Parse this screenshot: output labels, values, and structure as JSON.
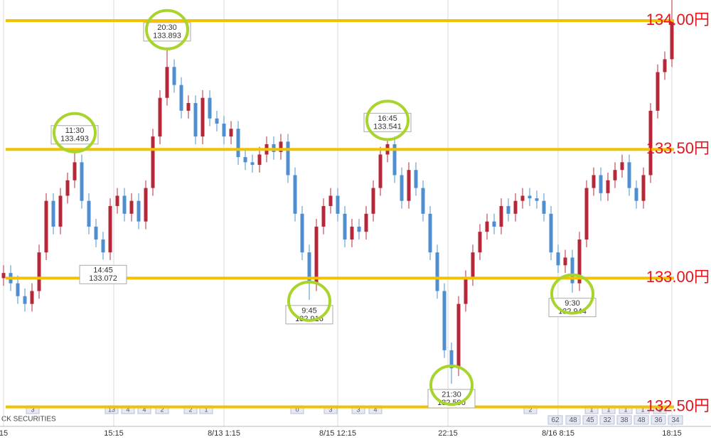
{
  "chart_data": {
    "type": "candlestick",
    "watermark": "CK SECURITIES",
    "up_color": "#b5283a",
    "down_color": "#4f8fd0",
    "level_color": "#f2c200",
    "level_label_color": "#e8141c",
    "circle_color": "#a8d42c",
    "grid": true,
    "xlim": [
      0,
      94
    ],
    "ylim": [
      132.43,
      134.08
    ],
    "xticks": [
      {
        "value": 0,
        "label": "15"
      },
      {
        "value": 15.5,
        "label": "15:15"
      },
      {
        "value": 31,
        "label": "8/13 1:15"
      },
      {
        "value": 47,
        "label": "8/15 12:15"
      },
      {
        "value": 62.5,
        "label": "22:15"
      },
      {
        "value": 78,
        "label": "8/16 8:15"
      },
      {
        "value": 94,
        "label": "18:15"
      }
    ],
    "open": [
      133.0,
      133.02,
      132.98,
      132.93,
      132.9,
      132.95,
      133.1,
      133.3,
      133.2,
      133.32,
      133.38,
      133.45,
      133.3,
      133.2,
      133.15,
      133.1,
      133.28,
      133.32,
      133.25,
      133.3,
      133.22,
      133.35,
      133.55,
      133.7,
      133.82,
      133.75,
      133.65,
      133.68,
      133.55,
      133.7,
      133.62,
      133.6,
      133.55,
      133.58,
      133.47,
      133.45,
      133.44,
      133.48,
      133.52,
      133.49,
      133.53,
      133.4,
      133.25,
      133.1,
      132.98,
      133.2,
      133.28,
      133.32,
      133.25,
      133.15,
      133.2,
      133.18,
      133.25,
      133.35,
      133.48,
      133.52,
      133.4,
      133.3,
      133.42,
      133.35,
      133.25,
      133.1,
      132.95,
      132.72,
      132.65,
      132.9,
      133.0,
      133.1,
      133.18,
      133.22,
      133.2,
      133.28,
      133.25,
      133.3,
      133.32,
      133.31,
      133.3,
      133.25,
      133.1,
      133.05,
      133.08,
      132.98,
      133.15,
      133.35,
      133.4,
      133.33,
      133.38,
      133.42,
      133.45,
      133.35,
      133.3,
      133.4,
      133.65,
      133.8,
      133.85
    ],
    "high": [
      133.05,
      133.05,
      133.01,
      132.96,
      132.98,
      133.13,
      133.33,
      133.33,
      133.35,
      133.41,
      133.493,
      133.48,
      133.33,
      133.23,
      133.18,
      133.31,
      133.35,
      133.35,
      133.33,
      133.33,
      133.38,
      133.58,
      133.73,
      133.893,
      133.85,
      133.78,
      133.71,
      133.71,
      133.73,
      133.73,
      133.65,
      133.63,
      133.61,
      133.61,
      133.5,
      133.48,
      133.51,
      133.55,
      133.55,
      133.56,
      133.56,
      133.43,
      133.28,
      133.13,
      133.23,
      133.31,
      133.35,
      133.35,
      133.28,
      133.23,
      133.23,
      133.28,
      133.38,
      133.51,
      133.541,
      133.55,
      133.43,
      133.45,
      133.45,
      133.38,
      133.28,
      133.13,
      132.98,
      132.75,
      132.93,
      133.03,
      133.13,
      133.21,
      133.25,
      133.25,
      133.31,
      133.31,
      133.33,
      133.35,
      133.35,
      133.34,
      133.33,
      133.28,
      133.13,
      133.11,
      133.11,
      133.18,
      133.38,
      133.43,
      133.43,
      133.41,
      133.45,
      133.48,
      133.48,
      133.38,
      133.43,
      133.68,
      133.83,
      133.88,
      134.08
    ],
    "low": [
      132.97,
      132.95,
      132.9,
      132.87,
      132.87,
      132.92,
      133.07,
      133.17,
      133.17,
      133.29,
      133.35,
      133.27,
      133.17,
      133.12,
      133.072,
      133.07,
      133.25,
      133.22,
      133.22,
      133.19,
      133.19,
      133.32,
      133.52,
      133.67,
      133.72,
      133.62,
      133.62,
      133.52,
      133.52,
      133.59,
      133.57,
      133.52,
      133.52,
      133.44,
      133.42,
      133.41,
      133.41,
      133.45,
      133.46,
      133.46,
      133.37,
      133.22,
      133.07,
      132.916,
      132.95,
      133.17,
      133.25,
      133.22,
      133.12,
      133.12,
      133.15,
      133.15,
      133.22,
      133.32,
      133.45,
      133.37,
      133.27,
      133.27,
      133.32,
      133.22,
      133.07,
      132.92,
      132.69,
      132.59,
      132.62,
      132.87,
      132.97,
      133.07,
      133.15,
      133.17,
      133.17,
      133.22,
      133.22,
      133.27,
      133.28,
      133.27,
      133.22,
      133.07,
      133.02,
      133.02,
      132.944,
      132.95,
      133.12,
      133.32,
      133.3,
      133.3,
      133.35,
      133.39,
      133.32,
      133.27,
      133.27,
      133.37,
      133.62,
      133.77,
      133.82
    ],
    "close": [
      133.02,
      132.98,
      132.93,
      132.9,
      132.95,
      133.1,
      133.3,
      133.2,
      133.32,
      133.38,
      133.45,
      133.3,
      133.2,
      133.15,
      133.1,
      133.28,
      133.32,
      133.25,
      133.3,
      133.22,
      133.35,
      133.55,
      133.7,
      133.82,
      133.75,
      133.65,
      133.68,
      133.55,
      133.7,
      133.62,
      133.6,
      133.55,
      133.58,
      133.47,
      133.45,
      133.44,
      133.48,
      133.52,
      133.49,
      133.53,
      133.4,
      133.25,
      133.1,
      132.98,
      133.2,
      133.28,
      133.32,
      133.25,
      133.15,
      133.2,
      133.18,
      133.25,
      133.35,
      133.48,
      133.52,
      133.4,
      133.3,
      133.42,
      133.35,
      133.25,
      133.1,
      132.95,
      132.72,
      132.65,
      132.9,
      133.0,
      133.1,
      133.18,
      133.22,
      133.2,
      133.28,
      133.25,
      133.3,
      133.32,
      133.31,
      133.3,
      133.25,
      133.1,
      133.05,
      133.08,
      132.98,
      133.15,
      133.35,
      133.4,
      133.33,
      133.38,
      133.42,
      133.45,
      133.35,
      133.3,
      133.4,
      133.65,
      133.8,
      133.85,
      134.0
    ],
    "levels": [
      {
        "value": 134.0,
        "label": "134.00円"
      },
      {
        "value": 133.5,
        "label": "133.50円"
      },
      {
        "value": 133.0,
        "label": "133.00円"
      },
      {
        "value": 132.5,
        "label": "132.50円"
      }
    ],
    "annotations": [
      {
        "time": "11:30",
        "value": 133.493,
        "label": "133.493",
        "circled": true
      },
      {
        "time": "20:30",
        "value": 133.893,
        "label": "133.893",
        "circled": true
      },
      {
        "time": "14:45",
        "value": 133.072,
        "label": "133.072",
        "circled": false
      },
      {
        "time": "9:45",
        "value": 132.916,
        "label": "132.916",
        "circled": true
      },
      {
        "time": "16:45",
        "value": 133.541,
        "label": "133.541",
        "circled": true
      },
      {
        "time": "21:30",
        "value": 132.59,
        "label": "132.590",
        "circled": true
      },
      {
        "time": "9:30",
        "value": 132.944,
        "label": "132.944",
        "circled": true
      }
    ],
    "badges_top": [
      "3",
      "13",
      "4",
      "4",
      "2",
      "2",
      "1",
      "0",
      "3",
      "3",
      "4",
      "2",
      "1",
      "1",
      "1",
      "1",
      "1"
    ],
    "badges_bottom": [
      "62",
      "48",
      "45",
      "32",
      "38",
      "48",
      "36",
      "34"
    ]
  }
}
